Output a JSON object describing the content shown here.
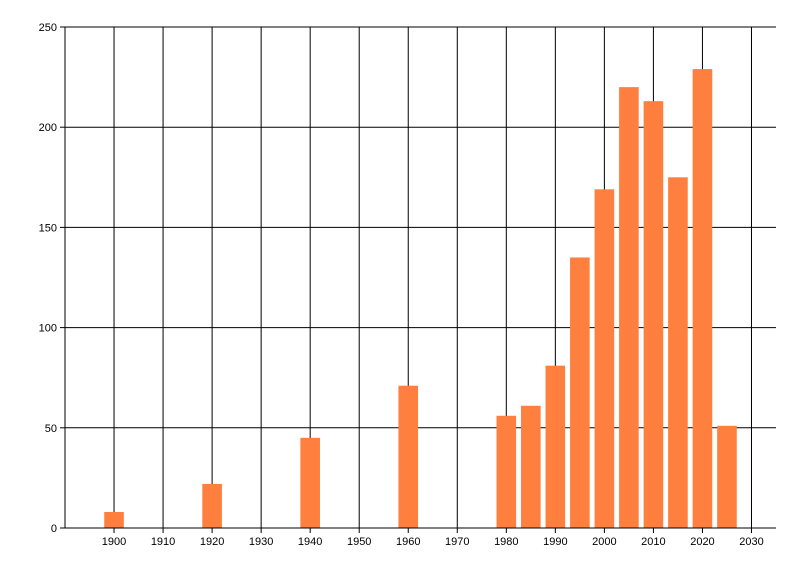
{
  "chart_data": {
    "type": "bar",
    "title": "",
    "xlabel": "",
    "ylabel": "",
    "x": [
      1900,
      1920,
      1940,
      1960,
      1980,
      1985,
      1990,
      1995,
      2000,
      2005,
      2010,
      2015,
      2020,
      2025
    ],
    "values": [
      8,
      22,
      45,
      71,
      56,
      61,
      81,
      135,
      169,
      220,
      213,
      175,
      229,
      51
    ],
    "xlim": [
      1890,
      2035
    ],
    "ylim": [
      0,
      250
    ],
    "x_ticks": [
      "1900",
      "1910",
      "1920",
      "1930",
      "1940",
      "1950",
      "1960",
      "1970",
      "1980",
      "1990",
      "2000",
      "2010",
      "2020",
      "2030"
    ],
    "y_ticks": [
      "0",
      "50",
      "100",
      "150",
      "200",
      "250"
    ],
    "grid": true,
    "bar_color": "#FF7F3F",
    "grid_color": "#000000"
  }
}
